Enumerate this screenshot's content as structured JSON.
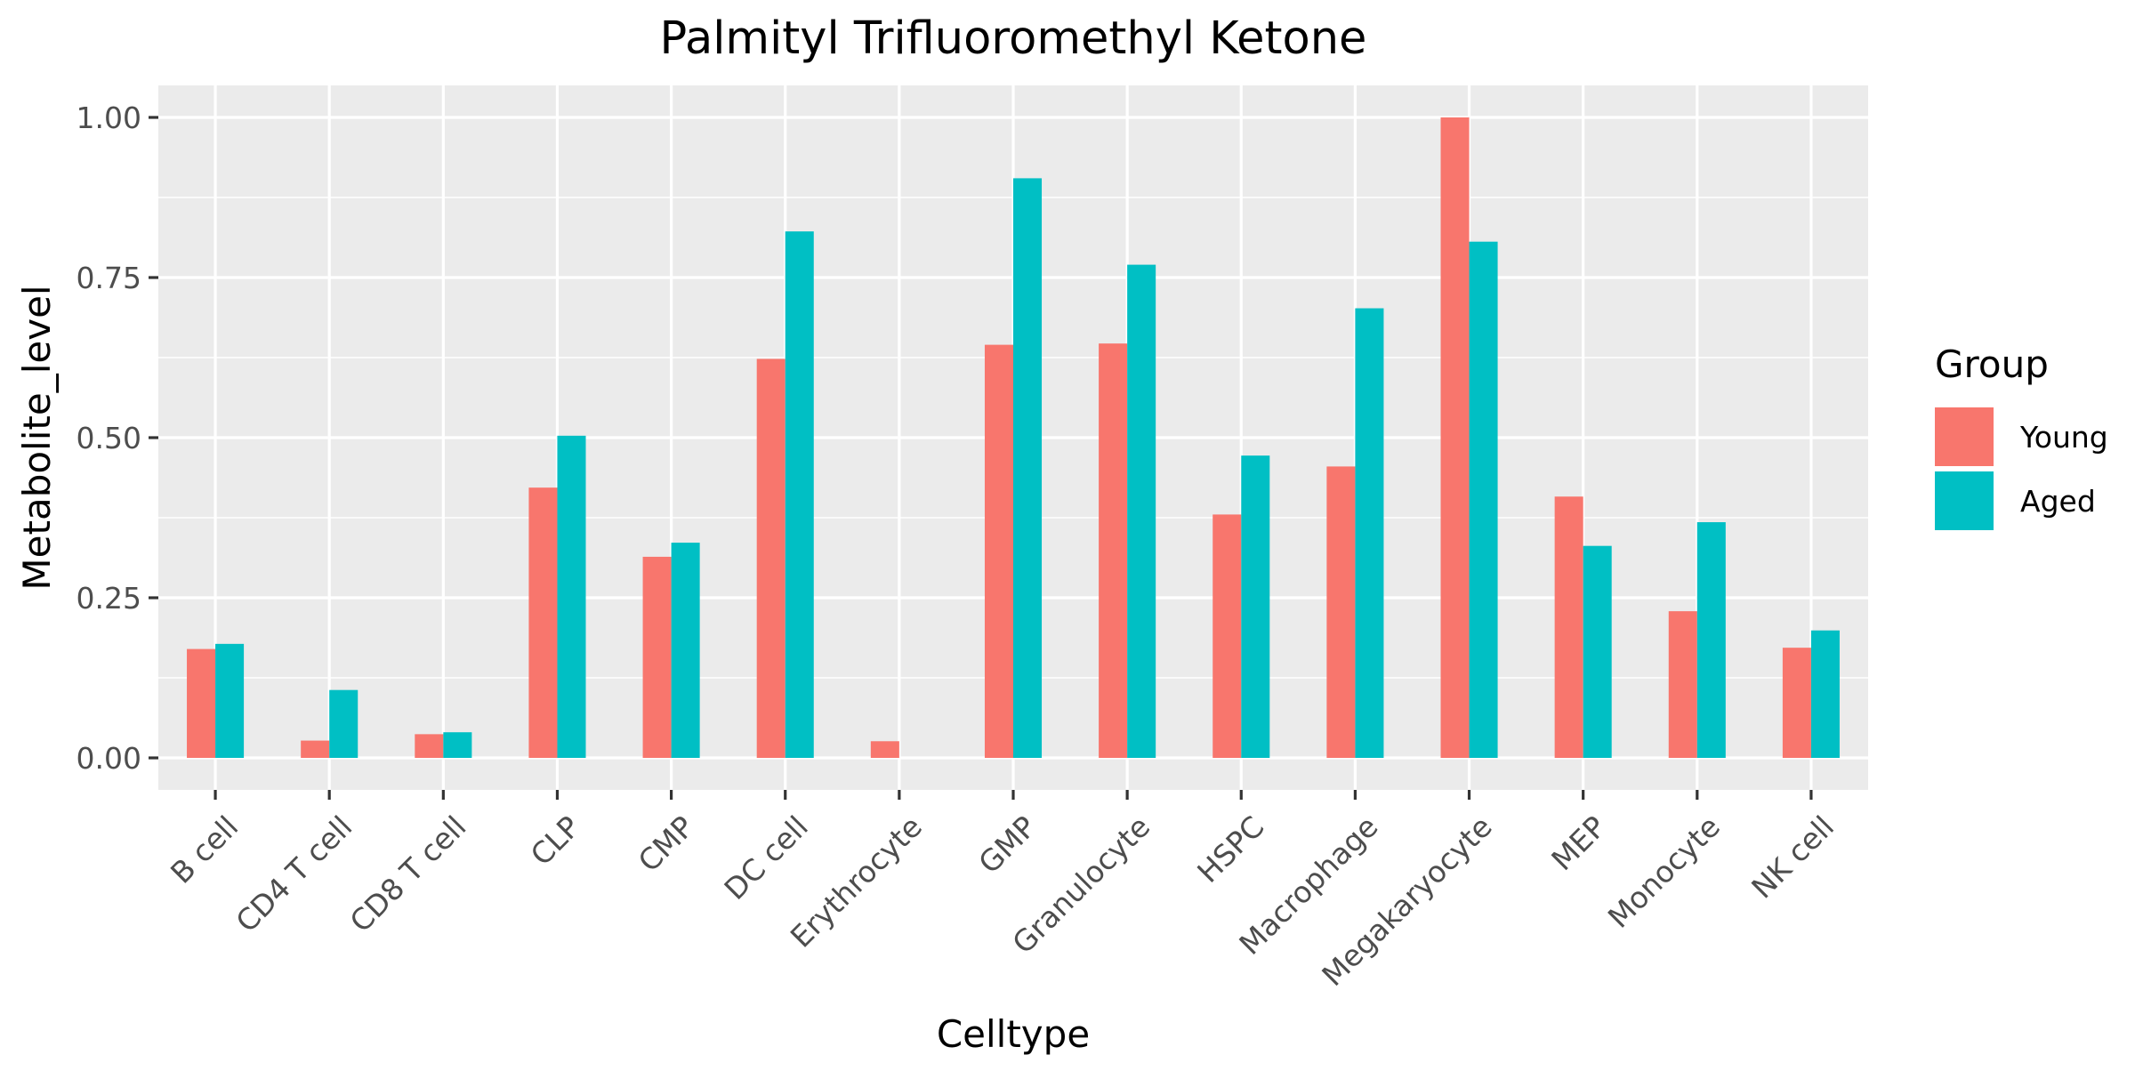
{
  "chart_data": {
    "type": "bar",
    "title": "Palmityl Trifluoromethyl Ketone",
    "xlabel": "Celltype",
    "ylabel": "Metabolite_level",
    "categories": [
      "B cell",
      "CD4 T cell",
      "CD8 T cell",
      "CLP",
      "CMP",
      "DC cell",
      "Erythrocyte",
      "GMP",
      "Granulocyte",
      "HSPC",
      "Macrophage",
      "Megakaryocyte",
      "MEP",
      "Monocyte",
      "NK cell"
    ],
    "series": [
      {
        "name": "Young",
        "color": "#F8766D",
        "values": [
          0.17,
          0.027,
          0.037,
          0.422,
          0.314,
          0.623,
          0.026,
          0.645,
          0.647,
          0.38,
          0.455,
          1.0,
          0.408,
          0.229,
          0.172
        ]
      },
      {
        "name": "Aged",
        "color": "#00BFC4",
        "values": [
          0.178,
          0.106,
          0.04,
          0.503,
          0.336,
          0.822,
          null,
          0.905,
          0.77,
          0.472,
          0.702,
          0.806,
          0.331,
          0.368,
          0.199
        ]
      }
    ],
    "ylim": [
      -0.05,
      1.05
    ],
    "yticks": [
      0.0,
      0.25,
      0.5,
      0.75,
      1.0
    ],
    "ytick_labels": [
      "0.00",
      "0.25",
      "0.50",
      "0.75",
      "1.00"
    ],
    "grid": true,
    "legend": {
      "title": "Group",
      "placement": "right"
    },
    "panel_background": "#EBEBEB",
    "grid_color": "#FFFFFF"
  }
}
